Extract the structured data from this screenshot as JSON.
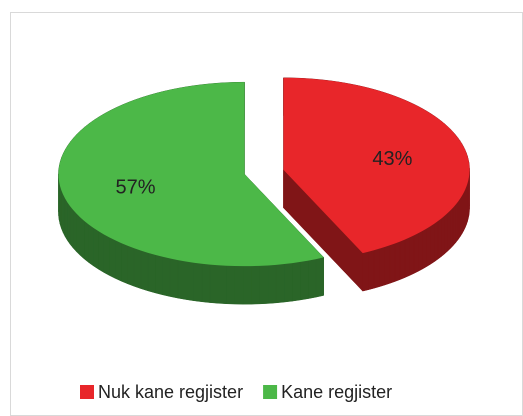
{
  "chart_data": {
    "type": "pie",
    "categories": [
      "Nuk kane regjister",
      "Kane regjister"
    ],
    "values": [
      43,
      57
    ],
    "value_labels": [
      "43%",
      "57%"
    ],
    "colors": [
      "#e8262a",
      "#4cb848"
    ],
    "legend": "bottom"
  }
}
